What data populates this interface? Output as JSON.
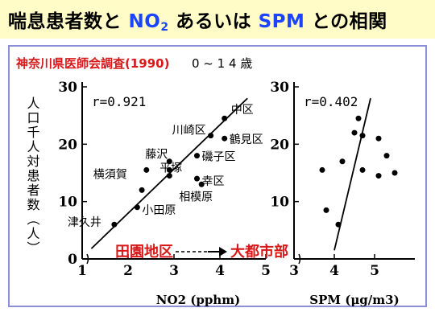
{
  "title": {
    "part1": "喘息患者数と ",
    "part2": "NO",
    "part2_sub": "2",
    "part3": " あるいは ",
    "part4": "SPM",
    "part5": " との相関"
  },
  "source_label": "神奈川県医師会調査(1990)",
  "age_label": "0 ~ 1 4 歳",
  "ylabel": "人口千人対患者数（人）",
  "arrow_text": {
    "left": "田園地区",
    "right": "大都市部"
  },
  "colors": {
    "title_accent": "#1a44ff",
    "red": "#d81818",
    "header_bg": "#fffcc8",
    "panel_border": "#8c8ed8"
  },
  "chart_data": [
    {
      "type": "scatter",
      "xlabel": "NO2 (pphm)",
      "ylim": [
        0,
        30
      ],
      "xlim": [
        1,
        5
      ],
      "yticks": [
        "0",
        "10",
        "20",
        "30"
      ],
      "xticks": [
        "1",
        "2",
        "3",
        "4",
        "5"
      ],
      "annotation": "r=0.921",
      "points": [
        {
          "label": "中区",
          "x": 4.1,
          "y": 24.5
        },
        {
          "label": "川崎区",
          "x": 3.8,
          "y": 21.5
        },
        {
          "label": "鶴見区",
          "x": 4.1,
          "y": 21.0
        },
        {
          "label": "藤沢",
          "x": 2.9,
          "y": 17.0
        },
        {
          "label": "磯子区",
          "x": 3.5,
          "y": 18.0
        },
        {
          "label": "平塚",
          "x": 2.9,
          "y": 15.5
        },
        {
          "label": "",
          "x": 2.9,
          "y": 14.5
        },
        {
          "label": "横須賀",
          "x": 2.4,
          "y": 15.5
        },
        {
          "label": "幸区",
          "x": 3.5,
          "y": 14.0
        },
        {
          "label": "相模原",
          "x": 3.6,
          "y": 13.0
        },
        {
          "label": "",
          "x": 2.3,
          "y": 12.0
        },
        {
          "label": "小田原",
          "x": 2.2,
          "y": 9.0
        },
        {
          "label": "津久井",
          "x": 1.7,
          "y": 6.0
        }
      ],
      "trendline": [
        [
          1.2,
          1.8
        ],
        [
          4.6,
          28.0
        ]
      ]
    },
    {
      "type": "scatter",
      "xlabel": "SPM (μg/m3)",
      "ylim": [
        0,
        30
      ],
      "xlim": [
        3,
        6
      ],
      "yticks": [
        "10",
        "20",
        "30"
      ],
      "xticks": [
        "3",
        "4",
        "5"
      ],
      "annotation": "r=0.402",
      "points": [
        {
          "x": 3.7,
          "y": 15.5
        },
        {
          "x": 3.8,
          "y": 8.5
        },
        {
          "x": 4.1,
          "y": 6.0
        },
        {
          "x": 4.2,
          "y": 17.0
        },
        {
          "x": 4.5,
          "y": 22.0
        },
        {
          "x": 4.6,
          "y": 24.5
        },
        {
          "x": 4.7,
          "y": 15.5
        },
        {
          "x": 4.7,
          "y": 21.5
        },
        {
          "x": 5.1,
          "y": 21.0
        },
        {
          "x": 5.1,
          "y": 14.5
        },
        {
          "x": 5.3,
          "y": 18.0
        },
        {
          "x": 5.5,
          "y": 15.0
        }
      ],
      "trendline": [
        [
          4.0,
          1.5
        ],
        [
          4.9,
          28.0
        ]
      ]
    }
  ]
}
